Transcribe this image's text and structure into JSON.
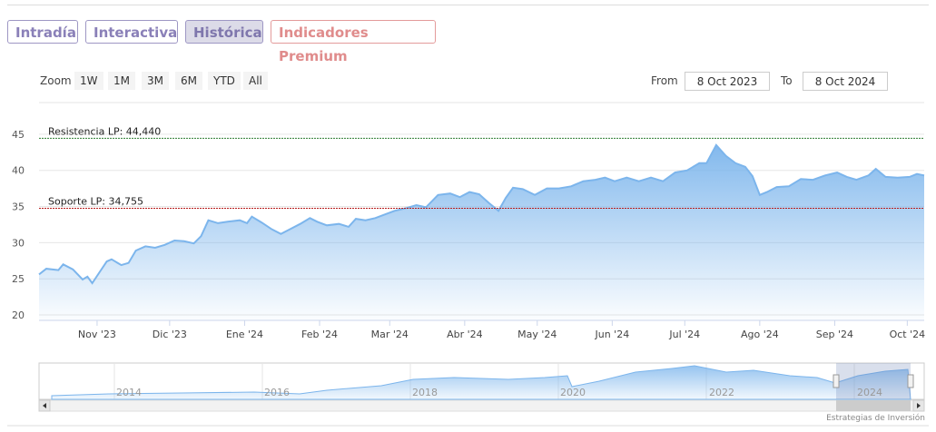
{
  "tabs": [
    "Intradía",
    "Interactiva",
    "Histórica",
    "Indicadores Premium"
  ],
  "zoom": {
    "label": "Zoom",
    "buttons": [
      "1W",
      "1M",
      "3M",
      "6M",
      "YTD",
      "All"
    ]
  },
  "range": {
    "from_label": "From",
    "from": "8 Oct 2023",
    "to_label": "To",
    "to": "8 Oct 2024"
  },
  "navigator_years": [
    "2014",
    "2016",
    "2018",
    "2020",
    "2022",
    "2024"
  ],
  "footer": "Estrategias de Inversión",
  "chart_data": {
    "type": "area",
    "color": "#7cb5ec",
    "grid": true,
    "ylim": [
      19.25,
      47.5
    ],
    "yticks": [
      20,
      25,
      30,
      35,
      40,
      45
    ],
    "xlim": [
      0,
      366
    ],
    "xticks": [
      {
        "value": 24,
        "label": "Nov '23"
      },
      {
        "value": 54,
        "label": "Dic '23"
      },
      {
        "value": 85,
        "label": "Ene '24"
      },
      {
        "value": 116,
        "label": "Feb '24"
      },
      {
        "value": 145,
        "label": "Mar '24"
      },
      {
        "value": 176,
        "label": "Abr '24"
      },
      {
        "value": 206,
        "label": "May '24"
      },
      {
        "value": 237,
        "label": "Jun '24"
      },
      {
        "value": 267,
        "label": "Jul '24"
      },
      {
        "value": 298,
        "label": "Ago '24"
      },
      {
        "value": 329,
        "label": "Sep '24"
      },
      {
        "value": 359,
        "label": "Oct '24"
      }
    ],
    "annotations": [
      {
        "label": "Resistencia LP: 44,440",
        "value": 44.44,
        "color": "#2e7d32"
      },
      {
        "label": "Soporte LP: 34,755",
        "value": 34.755,
        "color": "#b71c1c"
      }
    ],
    "x": [
      0,
      3,
      8,
      10,
      14,
      18,
      20,
      22,
      25,
      28,
      30,
      34,
      37,
      40,
      44,
      48,
      52,
      56,
      60,
      64,
      67,
      70,
      74,
      78,
      83,
      86,
      88,
      92,
      96,
      100,
      104,
      108,
      112,
      115,
      119,
      124,
      128,
      131,
      135,
      139,
      143,
      147,
      152,
      156,
      160,
      165,
      170,
      174,
      178,
      182,
      186,
      190,
      193,
      196,
      200,
      205,
      210,
      215,
      220,
      225,
      230,
      234,
      238,
      243,
      248,
      253,
      258,
      263,
      268,
      273,
      276,
      280,
      284,
      288,
      292,
      295,
      298,
      301,
      305,
      310,
      315,
      320,
      325,
      330,
      334,
      338,
      343,
      346,
      350,
      355,
      360,
      363,
      366
    ],
    "values": [
      25.6,
      26.4,
      26.2,
      27.0,
      26.3,
      24.9,
      25.3,
      24.4,
      25.9,
      27.4,
      27.7,
      26.9,
      27.2,
      28.9,
      29.5,
      29.3,
      29.7,
      30.3,
      30.2,
      29.9,
      30.9,
      33.1,
      32.7,
      32.9,
      33.1,
      32.7,
      33.6,
      32.8,
      31.9,
      31.2,
      31.9,
      32.6,
      33.4,
      32.9,
      32.4,
      32.6,
      32.2,
      33.3,
      33.1,
      33.4,
      33.9,
      34.4,
      34.8,
      35.2,
      34.9,
      36.6,
      36.8,
      36.3,
      37.0,
      36.7,
      35.5,
      34.4,
      36.2,
      37.6,
      37.4,
      36.6,
      37.5,
      37.5,
      37.8,
      38.5,
      38.7,
      39.0,
      38.5,
      39.0,
      38.5,
      39.0,
      38.5,
      39.7,
      40.0,
      41.0,
      41.0,
      43.5,
      42.0,
      41.0,
      40.5,
      39.2,
      36.6,
      37.0,
      37.7,
      37.8,
      38.8,
      38.7,
      39.3,
      39.7,
      39.1,
      38.7,
      39.3,
      40.2,
      39.1,
      39.0,
      39.1,
      39.5,
      39.3
    ]
  }
}
